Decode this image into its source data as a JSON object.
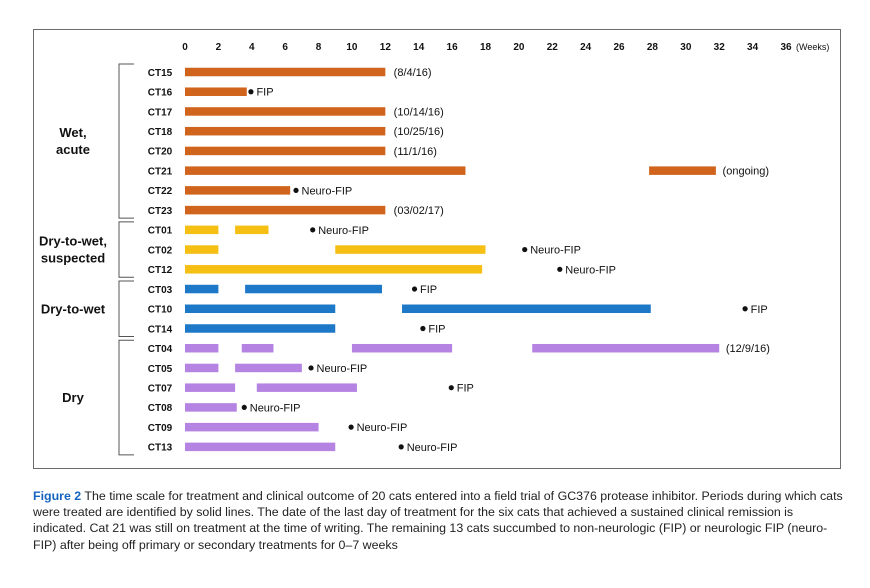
{
  "chart_data": {
    "type": "gantt",
    "x_unit": "(Weeks)",
    "x_ticks": [
      0,
      2,
      4,
      6,
      8,
      10,
      12,
      14,
      16,
      18,
      20,
      22,
      24,
      26,
      28,
      30,
      32,
      34,
      36
    ],
    "xlim": [
      0,
      36
    ],
    "colors": {
      "Wet, acute": "#d1641c",
      "Dry-to-wet, suspected": "#f5bf13",
      "Dry-to-wet": "#1e78c8",
      "Dry": "#b583e2"
    },
    "groups": [
      {
        "label_lines": [
          "Wet,",
          "acute"
        ],
        "color_key": "Wet, acute",
        "cats": [
          {
            "id": "CT15",
            "segments": [
              [
                0,
                12
              ]
            ],
            "outcome": "(8/4/16)",
            "outcome_week": 12.5,
            "dot": false
          },
          {
            "id": "CT16",
            "segments": [
              [
                0,
                3.7
              ]
            ],
            "outcome": "FIP",
            "outcome_week": 3.8,
            "dot": true
          },
          {
            "id": "CT17",
            "segments": [
              [
                0,
                12
              ]
            ],
            "outcome": "(10/14/16)",
            "outcome_week": 12.5,
            "dot": false
          },
          {
            "id": "CT18",
            "segments": [
              [
                0,
                12
              ]
            ],
            "outcome": "(10/25/16)",
            "outcome_week": 12.5,
            "dot": false
          },
          {
            "id": "CT20",
            "segments": [
              [
                0,
                12
              ]
            ],
            "outcome": "(11/1/16)",
            "outcome_week": 12.5,
            "dot": false
          },
          {
            "id": "CT21",
            "segments": [
              [
                0,
                16.8
              ],
              [
                27.8,
                31.8
              ]
            ],
            "outcome": "(ongoing)",
            "outcome_week": 32.2,
            "dot": false
          },
          {
            "id": "CT22",
            "segments": [
              [
                0,
                6.3
              ]
            ],
            "outcome": "Neuro-FIP",
            "outcome_week": 6.5,
            "dot": true
          },
          {
            "id": "CT23",
            "segments": [
              [
                0,
                12
              ]
            ],
            "outcome": "(03/02/17)",
            "outcome_week": 12.5,
            "dot": false
          }
        ]
      },
      {
        "label_lines": [
          "Dry-to-wet,",
          "suspected"
        ],
        "color_key": "Dry-to-wet, suspected",
        "cats": [
          {
            "id": "CT01",
            "segments": [
              [
                0,
                2
              ],
              [
                3,
                5
              ]
            ],
            "outcome": "Neuro-FIP",
            "outcome_week": 7.5,
            "dot": true
          },
          {
            "id": "CT02",
            "segments": [
              [
                0,
                2
              ],
              [
                9,
                18
              ]
            ],
            "outcome": "Neuro-FIP",
            "outcome_week": 20.2,
            "dot": true
          },
          {
            "id": "CT12",
            "segments": [
              [
                0,
                17.8
              ]
            ],
            "outcome": "Neuro-FIP",
            "outcome_week": 22.3,
            "dot": true
          }
        ]
      },
      {
        "label_lines": [
          "Dry-to-wet"
        ],
        "color_key": "Dry-to-wet",
        "cats": [
          {
            "id": "CT03",
            "segments": [
              [
                0,
                2
              ],
              [
                3.6,
                11.8
              ]
            ],
            "outcome": "FIP",
            "outcome_week": 13.6,
            "dot": true
          },
          {
            "id": "CT10",
            "segments": [
              [
                0,
                9
              ],
              [
                13,
                27.9
              ]
            ],
            "outcome": "FIP",
            "outcome_week": 33.4,
            "dot": true
          },
          {
            "id": "CT14",
            "segments": [
              [
                0,
                9
              ]
            ],
            "outcome": "FIP",
            "outcome_week": 14.1,
            "dot": true
          }
        ]
      },
      {
        "label_lines": [
          "Dry"
        ],
        "color_key": "Dry",
        "cats": [
          {
            "id": "CT04",
            "segments": [
              [
                0,
                2
              ],
              [
                3.4,
                5.3
              ],
              [
                10,
                16
              ],
              [
                20.8,
                32
              ]
            ],
            "outcome": "(12/9/16)",
            "outcome_week": 32.4,
            "dot": false
          },
          {
            "id": "CT05",
            "segments": [
              [
                0,
                2
              ],
              [
                3,
                7
              ]
            ],
            "outcome": "Neuro-FIP",
            "outcome_week": 7.4,
            "dot": true
          },
          {
            "id": "CT07",
            "segments": [
              [
                0,
                3
              ],
              [
                4.3,
                10.3
              ]
            ],
            "outcome": "FIP",
            "outcome_week": 15.8,
            "dot": true
          },
          {
            "id": "CT08",
            "segments": [
              [
                0,
                3.1
              ]
            ],
            "outcome": "Neuro-FIP",
            "outcome_week": 3.4,
            "dot": true
          },
          {
            "id": "CT09",
            "segments": [
              [
                0,
                8
              ]
            ],
            "outcome": "Neuro-FIP",
            "outcome_week": 9.8,
            "dot": true
          },
          {
            "id": "CT13",
            "segments": [
              [
                0,
                9
              ]
            ],
            "outcome": "Neuro-FIP",
            "outcome_week": 12.8,
            "dot": true
          }
        ]
      }
    ]
  },
  "caption": {
    "label": "Figure 2",
    "text": "The time scale for treatment and clinical outcome of 20 cats entered into a field trial of GC376 protease inhibitor. Periods during which cats were treated are identified by solid lines. The date of the last day of treatment for the six cats that achieved a sustained clinical remission is indicated. Cat 21 was still on treatment at the time of writing. The remaining 13 cats succumbed to non-neurologic (FIP) or neurologic FIP (neuro-FIP) after being off primary or secondary treatments for 0–7 weeks"
  }
}
